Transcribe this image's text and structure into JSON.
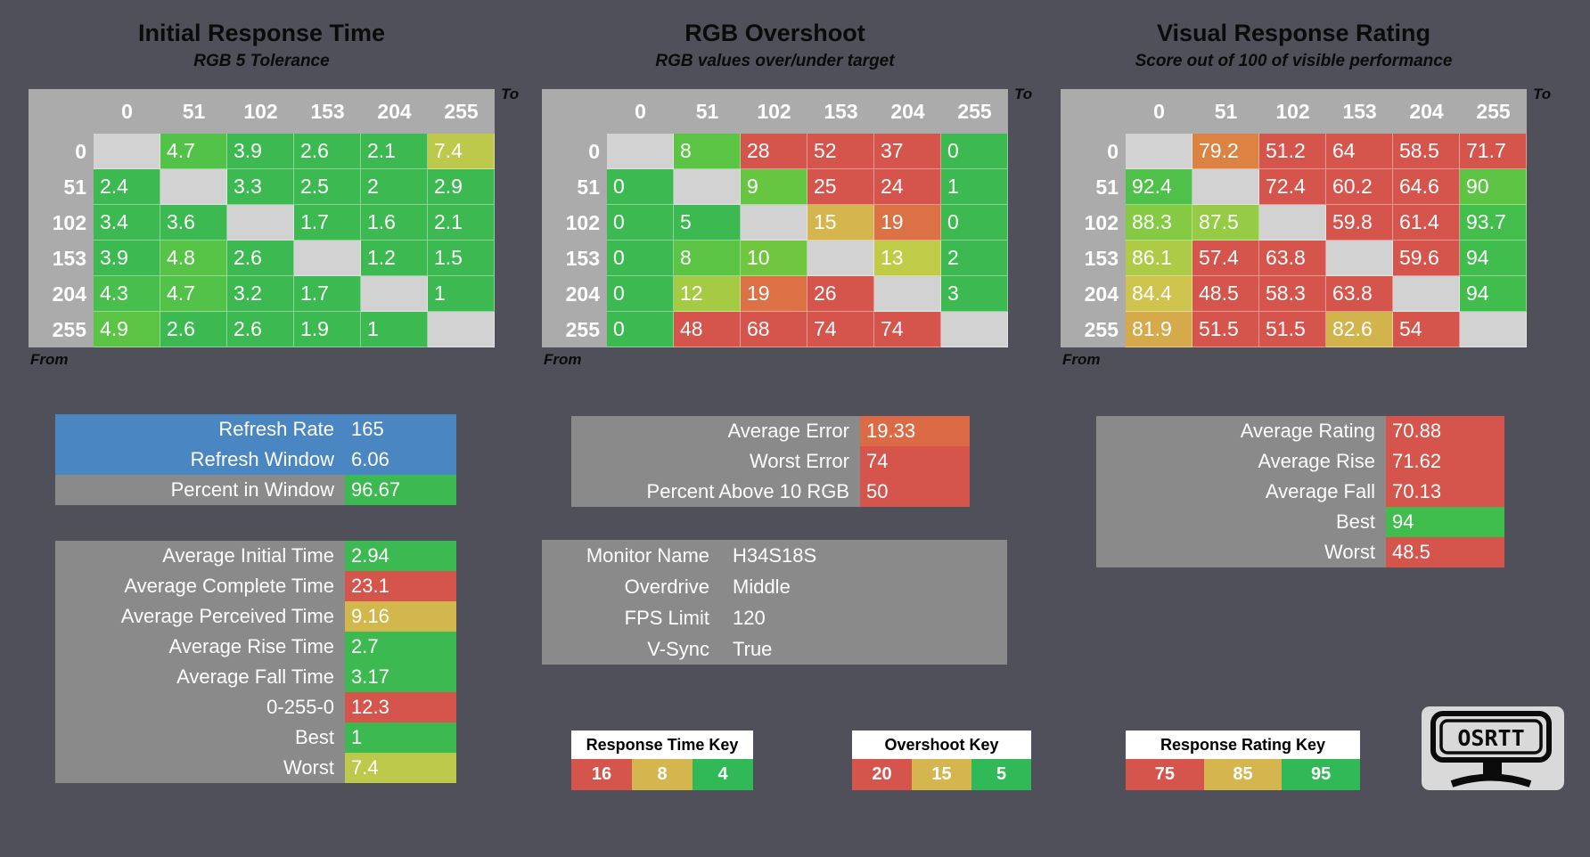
{
  "app": {
    "background": "#4F5059",
    "accent_blue": "#4A86C2",
    "box_gray": "#8A8A8A",
    "green": "#3CB951",
    "red": "#D5544C",
    "gold": "#D5B54E"
  },
  "tables": [
    {
      "type": "heatmap",
      "title": "Initial Response Time",
      "subtitle": "RGB 5 Tolerance",
      "axis_to": "To",
      "axis_from": "From",
      "col_headers": [
        "0",
        "51",
        "102",
        "153",
        "204",
        "255"
      ],
      "row_headers": [
        "0",
        "51",
        "102",
        "153",
        "204",
        "255"
      ],
      "rows": [
        [
          {
            "v": "",
            "c": "#D2D2D2"
          },
          {
            "v": "4.7",
            "c": "#52C249"
          },
          {
            "v": "3.9",
            "c": "#3CB951"
          },
          {
            "v": "2.6",
            "c": "#3CB951"
          },
          {
            "v": "2.1",
            "c": "#3CB951"
          },
          {
            "v": "7.4",
            "c": "#BCC94B"
          }
        ],
        [
          {
            "v": "2.4",
            "c": "#3CB951"
          },
          {
            "v": "",
            "c": "#D2D2D2"
          },
          {
            "v": "3.3",
            "c": "#3CB951"
          },
          {
            "v": "2.5",
            "c": "#3CB951"
          },
          {
            "v": "2",
            "c": "#3CB951"
          },
          {
            "v": "2.9",
            "c": "#3CB951"
          }
        ],
        [
          {
            "v": "3.4",
            "c": "#3CB951"
          },
          {
            "v": "3.6",
            "c": "#3CB951"
          },
          {
            "v": "",
            "c": "#D2D2D2"
          },
          {
            "v": "1.7",
            "c": "#3CB951"
          },
          {
            "v": "1.6",
            "c": "#3CB951"
          },
          {
            "v": "2.1",
            "c": "#3CB951"
          }
        ],
        [
          {
            "v": "3.9",
            "c": "#3CB951"
          },
          {
            "v": "4.8",
            "c": "#57C347"
          },
          {
            "v": "2.6",
            "c": "#3CB951"
          },
          {
            "v": "",
            "c": "#D2D2D2"
          },
          {
            "v": "1.2",
            "c": "#3CB951"
          },
          {
            "v": "1.5",
            "c": "#3CB951"
          }
        ],
        [
          {
            "v": "4.3",
            "c": "#48BE4C"
          },
          {
            "v": "4.7",
            "c": "#52C249"
          },
          {
            "v": "3.2",
            "c": "#3CB951"
          },
          {
            "v": "1.7",
            "c": "#3CB951"
          },
          {
            "v": "",
            "c": "#D2D2D2"
          },
          {
            "v": "1",
            "c": "#3CB951"
          }
        ],
        [
          {
            "v": "4.9",
            "c": "#5BC445"
          },
          {
            "v": "2.6",
            "c": "#3CB951"
          },
          {
            "v": "2.6",
            "c": "#3CB951"
          },
          {
            "v": "1.9",
            "c": "#3CB951"
          },
          {
            "v": "1",
            "c": "#3CB951"
          },
          {
            "v": "",
            "c": "#D2D2D2"
          }
        ]
      ]
    },
    {
      "type": "heatmap",
      "title": "RGB Overshoot",
      "subtitle": "RGB values over/under target",
      "axis_to": "To",
      "axis_from": "From",
      "col_headers": [
        "0",
        "51",
        "102",
        "153",
        "204",
        "255"
      ],
      "row_headers": [
        "0",
        "51",
        "102",
        "153",
        "204",
        "255"
      ],
      "rows": [
        [
          {
            "v": "",
            "c": "#D2D2D2"
          },
          {
            "v": "8",
            "c": "#5BC445"
          },
          {
            "v": "28",
            "c": "#D5544C"
          },
          {
            "v": "52",
            "c": "#D5544C"
          },
          {
            "v": "37",
            "c": "#D5544C"
          },
          {
            "v": "0",
            "c": "#3CB951"
          }
        ],
        [
          {
            "v": "0",
            "c": "#3CB951"
          },
          {
            "v": "",
            "c": "#D2D2D2"
          },
          {
            "v": "9",
            "c": "#66C641"
          },
          {
            "v": "25",
            "c": "#D5544C"
          },
          {
            "v": "24",
            "c": "#D5544C"
          },
          {
            "v": "1",
            "c": "#3CB951"
          }
        ],
        [
          {
            "v": "0",
            "c": "#3CB951"
          },
          {
            "v": "5",
            "c": "#3CB951"
          },
          {
            "v": "",
            "c": "#D2D2D2"
          },
          {
            "v": "15",
            "c": "#D5B54E"
          },
          {
            "v": "19",
            "c": "#DB7144"
          },
          {
            "v": "0",
            "c": "#3CB951"
          }
        ],
        [
          {
            "v": "0",
            "c": "#3CB951"
          },
          {
            "v": "8",
            "c": "#5BC445"
          },
          {
            "v": "10",
            "c": "#70C73F"
          },
          {
            "v": "",
            "c": "#D2D2D2"
          },
          {
            "v": "13",
            "c": "#C0CB47"
          },
          {
            "v": "2",
            "c": "#3CB951"
          }
        ],
        [
          {
            "v": "0",
            "c": "#3CB951"
          },
          {
            "v": "12",
            "c": "#A5CB44"
          },
          {
            "v": "19",
            "c": "#DB7144"
          },
          {
            "v": "26",
            "c": "#D5544C"
          },
          {
            "v": "",
            "c": "#D2D2D2"
          },
          {
            "v": "3",
            "c": "#3CB951"
          }
        ],
        [
          {
            "v": "0",
            "c": "#3CB951"
          },
          {
            "v": "48",
            "c": "#D5544C"
          },
          {
            "v": "68",
            "c": "#D5544C"
          },
          {
            "v": "74",
            "c": "#D5544C"
          },
          {
            "v": "74",
            "c": "#D5544C"
          },
          {
            "v": "",
            "c": "#D2D2D2"
          }
        ]
      ]
    },
    {
      "type": "heatmap",
      "title": "Visual Response Rating",
      "subtitle": "Score out of 100 of visible performance",
      "axis_to": "To",
      "axis_from": "From",
      "col_headers": [
        "0",
        "51",
        "102",
        "153",
        "204",
        "255"
      ],
      "row_headers": [
        "0",
        "51",
        "102",
        "153",
        "204",
        "255"
      ],
      "rows": [
        [
          {
            "v": "",
            "c": "#D2D2D2"
          },
          {
            "v": "79.2",
            "c": "#DC8343"
          },
          {
            "v": "51.2",
            "c": "#D5544C"
          },
          {
            "v": "64",
            "c": "#D5544C"
          },
          {
            "v": "58.5",
            "c": "#D5544C"
          },
          {
            "v": "71.7",
            "c": "#D5544C"
          }
        ],
        [
          {
            "v": "92.4",
            "c": "#4FC14A"
          },
          {
            "v": "",
            "c": "#D2D2D2"
          },
          {
            "v": "72.4",
            "c": "#D5544C"
          },
          {
            "v": "60.2",
            "c": "#D5544C"
          },
          {
            "v": "64.6",
            "c": "#D5544C"
          },
          {
            "v": "90",
            "c": "#5EC544"
          }
        ],
        [
          {
            "v": "88.3",
            "c": "#85CA43"
          },
          {
            "v": "87.5",
            "c": "#95CB45"
          },
          {
            "v": "",
            "c": "#D2D2D2"
          },
          {
            "v": "59.8",
            "c": "#D5544C"
          },
          {
            "v": "61.4",
            "c": "#D5544C"
          },
          {
            "v": "93.7",
            "c": "#43BE4D"
          }
        ],
        [
          {
            "v": "86.1",
            "c": "#AECB48"
          },
          {
            "v": "57.4",
            "c": "#D5544C"
          },
          {
            "v": "63.8",
            "c": "#D5544C"
          },
          {
            "v": "",
            "c": "#D2D2D2"
          },
          {
            "v": "59.6",
            "c": "#D5544C"
          },
          {
            "v": "94",
            "c": "#41BD4E"
          }
        ],
        [
          {
            "v": "84.4",
            "c": "#CDC34D"
          },
          {
            "v": "48.5",
            "c": "#D5544C"
          },
          {
            "v": "58.3",
            "c": "#D5544C"
          },
          {
            "v": "63.8",
            "c": "#D5544C"
          },
          {
            "v": "",
            "c": "#D2D2D2"
          },
          {
            "v": "94",
            "c": "#41BD4E"
          }
        ],
        [
          {
            "v": "81.9",
            "c": "#D6A94A"
          },
          {
            "v": "51.5",
            "c": "#D5544C"
          },
          {
            "v": "51.5",
            "c": "#D5544C"
          },
          {
            "v": "82.6",
            "c": "#D2B44D"
          },
          {
            "v": "54",
            "c": "#D5544C"
          },
          {
            "v": "",
            "c": "#D2D2D2"
          }
        ]
      ]
    }
  ],
  "left": {
    "refresh": {
      "rows": [
        {
          "label": "Refresh Rate",
          "value": "165"
        },
        {
          "label": "Refresh Window",
          "value": "6.06"
        }
      ]
    },
    "percent": {
      "rows": [
        {
          "label": "Percent in Window",
          "value": "96.67",
          "color": "#3CB951"
        }
      ]
    },
    "stats": {
      "rows": [
        {
          "label": "Average Initial Time",
          "value": "2.94",
          "color": "#3CB951"
        },
        {
          "label": "Average Complete Time",
          "value": "23.1",
          "color": "#D5544C"
        },
        {
          "label": "Average Perceived Time",
          "value": "9.16",
          "color": "#D2B74D"
        },
        {
          "label": "Average Rise Time",
          "value": "2.7",
          "color": "#3CB951"
        },
        {
          "label": "Average Fall Time",
          "value": "3.17",
          "color": "#3CB951"
        },
        {
          "label": "0-255-0",
          "value": "12.3",
          "color": "#D5544C"
        },
        {
          "label": "Best",
          "value": "1",
          "color": "#3CB951"
        },
        {
          "label": "Worst",
          "value": "7.4",
          "color": "#BCC94B"
        }
      ]
    }
  },
  "middle": {
    "errors": {
      "rows": [
        {
          "label": "Average Error",
          "value": "19.33",
          "color": "#DB6A45"
        },
        {
          "label": "Worst Error",
          "value": "74",
          "color": "#D5544C"
        },
        {
          "label": "Percent Above 10 RGB",
          "value": "50",
          "color": "#D5544C"
        }
      ]
    },
    "monitor": {
      "rows": [
        {
          "label": "Monitor Name",
          "value": "H34S18S"
        },
        {
          "label": "Overdrive",
          "value": "Middle"
        },
        {
          "label": "FPS Limit",
          "value": "120"
        },
        {
          "label": "V-Sync",
          "value": "True"
        }
      ]
    }
  },
  "right": {
    "ratings": {
      "rows": [
        {
          "label": "Average Rating",
          "value": "70.88",
          "color": "#D5544C"
        },
        {
          "label": "Average Rise",
          "value": "71.62",
          "color": "#D5544C"
        },
        {
          "label": "Average Fall",
          "value": "70.13",
          "color": "#D5544C"
        },
        {
          "label": "Best",
          "value": "94",
          "color": "#41BD4E"
        },
        {
          "label": "Worst",
          "value": "48.5",
          "color": "#D5544C"
        }
      ]
    }
  },
  "keys": [
    {
      "title": "Response Time Key",
      "cells": [
        {
          "v": "16",
          "c": "#D5544C"
        },
        {
          "v": "8",
          "c": "#D5B54E"
        },
        {
          "v": "4",
          "c": "#31B857"
        }
      ]
    },
    {
      "title": "Overshoot Key",
      "cells": [
        {
          "v": "20",
          "c": "#D5544C"
        },
        {
          "v": "15",
          "c": "#D5B54E"
        },
        {
          "v": "5",
          "c": "#31B857"
        }
      ]
    },
    {
      "title": "Response Rating Key",
      "cells": [
        {
          "v": "75",
          "c": "#D5544C"
        },
        {
          "v": "85",
          "c": "#D5B54E"
        },
        {
          "v": "95",
          "c": "#31B857"
        }
      ]
    }
  ],
  "logo": {
    "text": "OSRTT"
  }
}
